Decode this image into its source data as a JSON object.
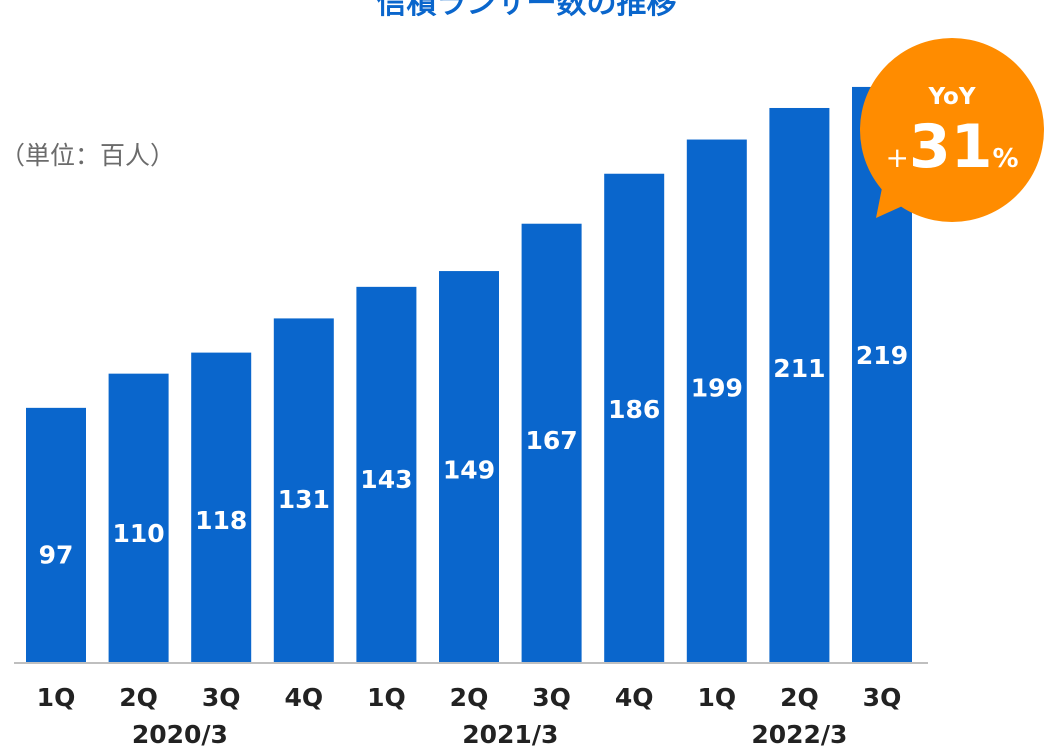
{
  "title": "信積ランサー数の推移",
  "unit_label": "（単位：百人）",
  "callout": {
    "label": "YoY",
    "sign": "+",
    "value": "31",
    "unit": "%",
    "color": "#ff8c00"
  },
  "colors": {
    "bar": "#0a66cc",
    "axis": "#bfbfbf"
  },
  "chart_data": {
    "type": "bar",
    "categories": [
      "1Q",
      "2Q",
      "3Q",
      "4Q",
      "1Q",
      "2Q",
      "3Q",
      "4Q",
      "1Q",
      "2Q",
      "3Q"
    ],
    "values": [
      97,
      110,
      118,
      131,
      143,
      149,
      167,
      186,
      199,
      211,
      219
    ],
    "groups": [
      {
        "label": "2020/3",
        "start": 0,
        "end": 3
      },
      {
        "label": "2021/3",
        "start": 4,
        "end": 7
      },
      {
        "label": "2022/3",
        "start": 8,
        "end": 10
      }
    ],
    "ylim": [
      0,
      230
    ],
    "grid": false,
    "legend": "none"
  }
}
